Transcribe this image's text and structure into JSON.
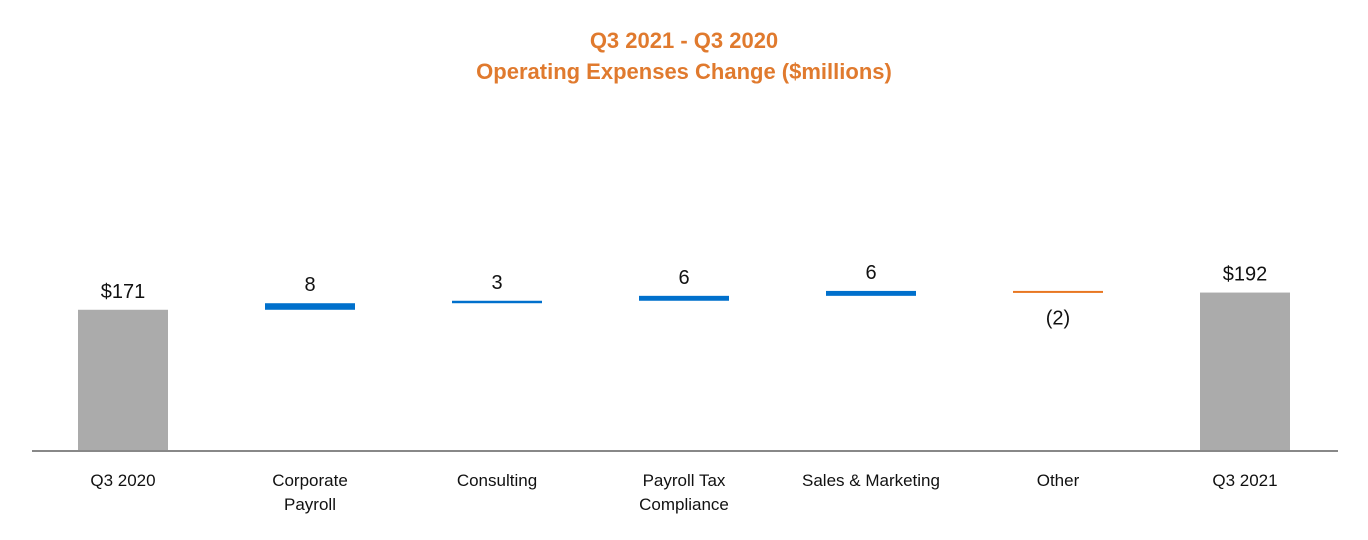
{
  "chart_data": {
    "type": "bar",
    "subtype": "waterfall",
    "title": "Q3 2021 - Q3 2020",
    "subtitle": "Operating Expenses Change ($millions)",
    "categories": [
      [
        "Q3 2020"
      ],
      [
        "Corporate",
        "Payroll"
      ],
      [
        "Consulting"
      ],
      [
        "Payroll Tax",
        "Compliance"
      ],
      [
        "Sales & Marketing"
      ],
      [
        "Other"
      ],
      [
        "Q3 2021"
      ]
    ],
    "values": [
      171,
      8,
      3,
      6,
      6,
      -2,
      192
    ],
    "kinds": [
      "total",
      "increase",
      "increase",
      "increase",
      "increase",
      "decrease",
      "total"
    ],
    "data_labels": [
      "$171",
      "8",
      "3",
      "6",
      "6",
      "(2)",
      "$192"
    ],
    "colors": {
      "total": "#ABABAB",
      "increase": "#0070CC",
      "decrease": "#E87722",
      "axis": "#888888",
      "title": "#E07A2E"
    },
    "xlabel": "",
    "ylabel": "",
    "grid": false,
    "legend": "none"
  }
}
